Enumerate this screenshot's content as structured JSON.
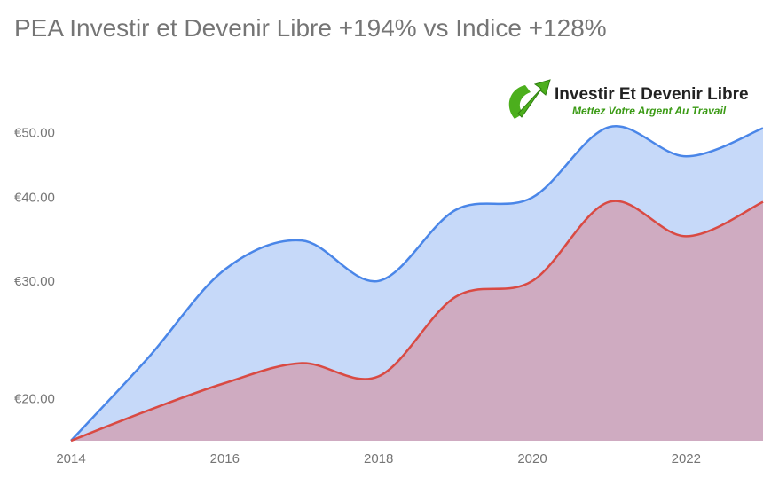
{
  "title": "PEA Investir et Devenir Libre +194% vs Indice +128%",
  "logo": {
    "name": "Investir Et Devenir Libre",
    "tagline": "Mettez Votre Argent Au Travail"
  },
  "colors": {
    "portfolio_line": "#4a86e8",
    "portfolio_fill": "#c6d9f9",
    "index_line": "#d94a43",
    "index_fill": "#cfabc1",
    "logo_green": "#4caf1d"
  },
  "chart_data": {
    "type": "area",
    "title": "PEA Investir et Devenir Libre +194% vs Indice +128%",
    "x": [
      2014,
      2015,
      2016,
      2017,
      2018,
      2019,
      2020,
      2021,
      2022,
      2023
    ],
    "series": [
      {
        "values": [
          17.3,
          23.0,
          31.2,
          34.5,
          30.0,
          38.3,
          40.0,
          51.0,
          46.1,
          50.8
        ]
      },
      {
        "values": [
          17.3,
          19.2,
          21.1,
          22.6,
          21.6,
          28.4,
          30.0,
          39.4,
          35.0,
          39.4
        ]
      }
    ],
    "x_ticks": [
      "2014",
      "2016",
      "2018",
      "2020",
      "2022"
    ],
    "y_ticks": [
      "€20.00",
      "€30.00",
      "€40.00",
      "€50.00"
    ],
    "y_tick_values": [
      20,
      30,
      40,
      50
    ],
    "y_scale": "log",
    "ylim": [
      17.3,
      51.5
    ],
    "xlim": [
      2014,
      2023
    ],
    "legend": "none",
    "grid": false
  }
}
